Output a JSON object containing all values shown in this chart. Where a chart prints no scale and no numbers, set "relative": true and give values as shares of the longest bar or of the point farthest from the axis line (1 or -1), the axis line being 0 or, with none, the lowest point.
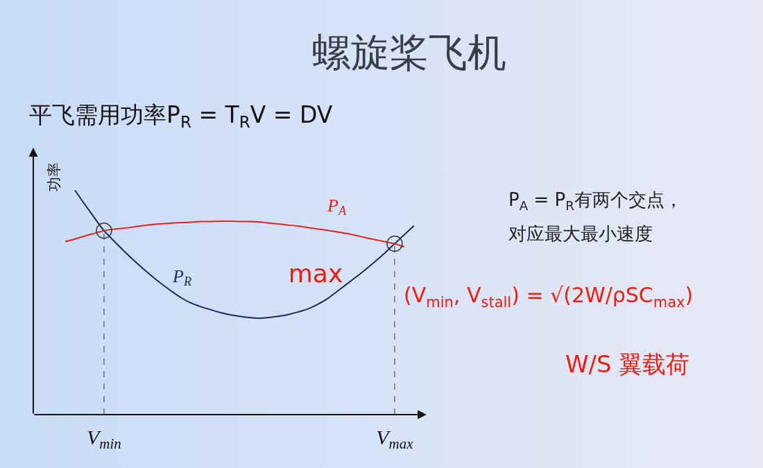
{
  "chart_data": {
    "type": "line",
    "title": "螺旋桨飞机",
    "subtitle": "平飞需用功率P$_{R}$ = T$_{R}$V = DV",
    "ylabel": "功率",
    "relative": true,
    "tick_labels": "x",
    "categories": [
      null,
      null,
      null,
      null,
      "V$_{min}$",
      null,
      null,
      null,
      null,
      null,
      null,
      null,
      null,
      null,
      null,
      null,
      null,
      null,
      null,
      null,
      null,
      null,
      null,
      null,
      null,
      null,
      null,
      null,
      null,
      null,
      null,
      null,
      null,
      null,
      "V$_{max}$",
      null,
      null
    ],
    "series": [
      {
        "name": "P$_{R}$",
        "color": "#1b2a5c",
        "values": [
          null,
          1,
          0.938,
          0.878,
          0.82,
          0.775,
          0.732,
          0.691,
          0.652,
          0.615,
          0.581,
          0.549,
          0.52,
          0.497,
          0.481,
          0.468,
          0.455,
          0.445,
          0.438,
          0.433,
          0.43,
          0.433,
          0.438,
          0.446,
          0.457,
          0.47,
          0.49,
          0.515,
          0.547,
          0.58,
          0.613,
          0.647,
          0.683,
          0.721,
          0.762,
          0.802,
          0.842
        ]
      },
      {
        "name": "P$_{A}$",
        "color": "#e3231c",
        "values": [
          0.771,
          0.783,
          0.796,
          0.808,
          0.82,
          0.827,
          0.831,
          0.836,
          0.842,
          0.848,
          0.851,
          0.854,
          0.856,
          0.858,
          0.861,
          0.861,
          0.862,
          0.862,
          0.861,
          0.861,
          0.859,
          0.854,
          0.85,
          0.845,
          0.841,
          0.834,
          0.828,
          0.822,
          0.815,
          0.808,
          0.799,
          0.789,
          0.78,
          0.771,
          0.762,
          0.748,
          null
        ]
      },
      {
        "type": "lollipop",
        "color": "#3a3a3a",
        "marker": "circle",
        "line_style": "dashed",
        "values": [
          null,
          null,
          null,
          null,
          0.82,
          null,
          null,
          null,
          null,
          null,
          null,
          null,
          null,
          null,
          null,
          null,
          null,
          null,
          null,
          null,
          null,
          null,
          null,
          null,
          null,
          null,
          null,
          null,
          null,
          null,
          null,
          null,
          null,
          null,
          0.762,
          null,
          null
        ]
      }
    ],
    "annotations": [
      "P$_{A}$ = P$_{R}$有两个交点，对应最大最小速度",
      "max",
      "(V$_{min}$, V$_{stall}$) = √(2W/ρSC$_{max}$)",
      "W/S  翼载荷"
    ]
  }
}
